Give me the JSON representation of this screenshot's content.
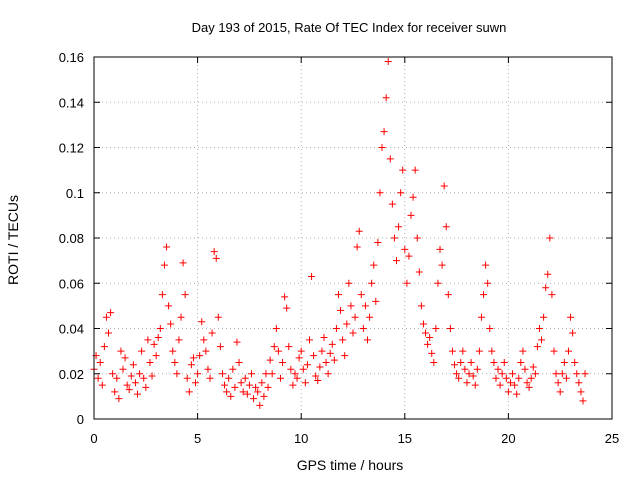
{
  "chart_data": {
    "type": "scatter",
    "title": "Day 193 of 2015, Rate Of TEC Index for receiver suwn",
    "xlabel": "GPS time / hours",
    "ylabel": "ROTI / TECUs",
    "xlim": [
      0,
      25
    ],
    "ylim": [
      0,
      0.16
    ],
    "xticks": [
      0,
      5,
      10,
      15,
      20,
      25
    ],
    "xtick_labels": [
      "0",
      "5",
      "10",
      "15",
      "20",
      "25"
    ],
    "yticks": [
      0,
      0.02,
      0.04,
      0.06,
      0.08,
      0.1,
      0.12,
      0.14,
      0.16
    ],
    "ytick_labels": [
      "0",
      "0.02",
      "0.04",
      "0.06",
      "0.08",
      "0.1",
      "0.12",
      "0.14",
      "0.16"
    ],
    "grid": true,
    "marker": "+",
    "color": "#ff0000",
    "series": [
      {
        "name": "ROTI",
        "points": [
          [
            0.0,
            0.022
          ],
          [
            0.1,
            0.028
          ],
          [
            0.2,
            0.018
          ],
          [
            0.3,
            0.025
          ],
          [
            0.4,
            0.015
          ],
          [
            0.5,
            0.032
          ],
          [
            0.6,
            0.045
          ],
          [
            0.7,
            0.038
          ],
          [
            0.8,
            0.047
          ],
          [
            0.9,
            0.02
          ],
          [
            1.0,
            0.012
          ],
          [
            1.1,
            0.018
          ],
          [
            1.2,
            0.009
          ],
          [
            1.3,
            0.03
          ],
          [
            1.4,
            0.022
          ],
          [
            1.5,
            0.027
          ],
          [
            1.6,
            0.015
          ],
          [
            1.7,
            0.013
          ],
          [
            1.8,
            0.019
          ],
          [
            1.9,
            0.024
          ],
          [
            2.0,
            0.016
          ],
          [
            2.1,
            0.011
          ],
          [
            2.2,
            0.02
          ],
          [
            2.3,
            0.03
          ],
          [
            2.4,
            0.018
          ],
          [
            2.5,
            0.014
          ],
          [
            2.6,
            0.035
          ],
          [
            2.7,
            0.025
          ],
          [
            2.8,
            0.019
          ],
          [
            2.9,
            0.033
          ],
          [
            3.0,
            0.028
          ],
          [
            3.1,
            0.036
          ],
          [
            3.2,
            0.04
          ],
          [
            3.3,
            0.055
          ],
          [
            3.4,
            0.068
          ],
          [
            3.5,
            0.076
          ],
          [
            3.6,
            0.05
          ],
          [
            3.7,
            0.042
          ],
          [
            3.8,
            0.03
          ],
          [
            3.9,
            0.025
          ],
          [
            4.0,
            0.02
          ],
          [
            4.1,
            0.035
          ],
          [
            4.2,
            0.045
          ],
          [
            4.3,
            0.069
          ],
          [
            4.4,
            0.055
          ],
          [
            4.5,
            0.018
          ],
          [
            4.6,
            0.012
          ],
          [
            4.7,
            0.024
          ],
          [
            4.8,
            0.027
          ],
          [
            4.9,
            0.016
          ],
          [
            5.0,
            0.02
          ],
          [
            5.1,
            0.028
          ],
          [
            5.2,
            0.043
          ],
          [
            5.3,
            0.035
          ],
          [
            5.4,
            0.03
          ],
          [
            5.5,
            0.022
          ],
          [
            5.6,
            0.018
          ],
          [
            5.7,
            0.038
          ],
          [
            5.8,
            0.074
          ],
          [
            5.9,
            0.071
          ],
          [
            6.0,
            0.045
          ],
          [
            6.1,
            0.032
          ],
          [
            6.2,
            0.02
          ],
          [
            6.3,
            0.015
          ],
          [
            6.4,
            0.012
          ],
          [
            6.5,
            0.018
          ],
          [
            6.6,
            0.01
          ],
          [
            6.7,
            0.022
          ],
          [
            6.8,
            0.014
          ],
          [
            6.9,
            0.034
          ],
          [
            7.0,
            0.025
          ],
          [
            7.1,
            0.016
          ],
          [
            7.2,
            0.012
          ],
          [
            7.3,
            0.018
          ],
          [
            7.4,
            0.011
          ],
          [
            7.5,
            0.015
          ],
          [
            7.6,
            0.02
          ],
          [
            7.7,
            0.009
          ],
          [
            7.8,
            0.014
          ],
          [
            7.9,
            0.012
          ],
          [
            8.0,
            0.006
          ],
          [
            8.1,
            0.016
          ],
          [
            8.2,
            0.01
          ],
          [
            8.3,
            0.02
          ],
          [
            8.4,
            0.014
          ],
          [
            8.5,
            0.026
          ],
          [
            8.6,
            0.02
          ],
          [
            8.7,
            0.032
          ],
          [
            8.8,
            0.04
          ],
          [
            8.9,
            0.03
          ],
          [
            9.0,
            0.018
          ],
          [
            9.1,
            0.025
          ],
          [
            9.2,
            0.054
          ],
          [
            9.3,
            0.049
          ],
          [
            9.4,
            0.032
          ],
          [
            9.5,
            0.022
          ],
          [
            9.6,
            0.015
          ],
          [
            9.7,
            0.02
          ],
          [
            9.8,
            0.018
          ],
          [
            9.9,
            0.027
          ],
          [
            10.0,
            0.03
          ],
          [
            10.1,
            0.022
          ],
          [
            10.2,
            0.016
          ],
          [
            10.3,
            0.024
          ],
          [
            10.4,
            0.035
          ],
          [
            10.5,
            0.063
          ],
          [
            10.6,
            0.028
          ],
          [
            10.7,
            0.019
          ],
          [
            10.8,
            0.017
          ],
          [
            10.9,
            0.023
          ],
          [
            11.0,
            0.03
          ],
          [
            11.1,
            0.036
          ],
          [
            11.2,
            0.025
          ],
          [
            11.3,
            0.02
          ],
          [
            11.4,
            0.029
          ],
          [
            11.5,
            0.033
          ],
          [
            11.6,
            0.026
          ],
          [
            11.7,
            0.04
          ],
          [
            11.8,
            0.055
          ],
          [
            11.9,
            0.048
          ],
          [
            12.0,
            0.035
          ],
          [
            12.1,
            0.028
          ],
          [
            12.2,
            0.042
          ],
          [
            12.3,
            0.06
          ],
          [
            12.4,
            0.05
          ],
          [
            12.5,
            0.038
          ],
          [
            12.6,
            0.045
          ],
          [
            12.7,
            0.076
          ],
          [
            12.8,
            0.083
          ],
          [
            12.9,
            0.055
          ],
          [
            13.0,
            0.04
          ],
          [
            13.1,
            0.05
          ],
          [
            13.2,
            0.035
          ],
          [
            13.3,
            0.045
          ],
          [
            13.4,
            0.06
          ],
          [
            13.5,
            0.068
          ],
          [
            13.6,
            0.052
          ],
          [
            13.7,
            0.078
          ],
          [
            13.8,
            0.1
          ],
          [
            13.9,
            0.12
          ],
          [
            14.0,
            0.127
          ],
          [
            14.1,
            0.142
          ],
          [
            14.2,
            0.158
          ],
          [
            14.3,
            0.115
          ],
          [
            14.4,
            0.095
          ],
          [
            14.5,
            0.08
          ],
          [
            14.6,
            0.07
          ],
          [
            14.7,
            0.085
          ],
          [
            14.8,
            0.1
          ],
          [
            14.9,
            0.11
          ],
          [
            15.0,
            0.075
          ],
          [
            15.1,
            0.06
          ],
          [
            15.2,
            0.072
          ],
          [
            15.3,
            0.09
          ],
          [
            15.4,
            0.098
          ],
          [
            15.5,
            0.11
          ],
          [
            15.6,
            0.08
          ],
          [
            15.7,
            0.065
          ],
          [
            15.8,
            0.05
          ],
          [
            15.9,
            0.042
          ],
          [
            16.0,
            0.038
          ],
          [
            16.1,
            0.033
          ],
          [
            16.2,
            0.036
          ],
          [
            16.3,
            0.029
          ],
          [
            16.4,
            0.025
          ],
          [
            16.5,
            0.04
          ],
          [
            16.6,
            0.06
          ],
          [
            16.7,
            0.075
          ],
          [
            16.8,
            0.068
          ],
          [
            16.9,
            0.103
          ],
          [
            17.0,
            0.085
          ],
          [
            17.1,
            0.055
          ],
          [
            17.2,
            0.04
          ],
          [
            17.3,
            0.03
          ],
          [
            17.4,
            0.024
          ],
          [
            17.5,
            0.02
          ],
          [
            17.6,
            0.018
          ],
          [
            17.7,
            0.025
          ],
          [
            17.8,
            0.03
          ],
          [
            17.9,
            0.022
          ],
          [
            18.0,
            0.016
          ],
          [
            18.1,
            0.02
          ],
          [
            18.2,
            0.025
          ],
          [
            18.3,
            0.019
          ],
          [
            18.4,
            0.015
          ],
          [
            18.5,
            0.022
          ],
          [
            18.6,
            0.03
          ],
          [
            18.7,
            0.045
          ],
          [
            18.8,
            0.055
          ],
          [
            18.9,
            0.068
          ],
          [
            19.0,
            0.06
          ],
          [
            19.1,
            0.04
          ],
          [
            19.2,
            0.03
          ],
          [
            19.3,
            0.025
          ],
          [
            19.4,
            0.018
          ],
          [
            19.5,
            0.022
          ],
          [
            19.6,
            0.015
          ],
          [
            19.7,
            0.02
          ],
          [
            19.8,
            0.025
          ],
          [
            19.9,
            0.018
          ],
          [
            20.0,
            0.012
          ],
          [
            20.1,
            0.016
          ],
          [
            20.2,
            0.02
          ],
          [
            20.3,
            0.015
          ],
          [
            20.4,
            0.011
          ],
          [
            20.5,
            0.018
          ],
          [
            20.6,
            0.025
          ],
          [
            20.7,
            0.03
          ],
          [
            20.8,
            0.022
          ],
          [
            20.9,
            0.016
          ],
          [
            21.0,
            0.014
          ],
          [
            21.1,
            0.018
          ],
          [
            21.2,
            0.023
          ],
          [
            21.3,
            0.02
          ],
          [
            21.4,
            0.032
          ],
          [
            21.5,
            0.04
          ],
          [
            21.6,
            0.035
          ],
          [
            21.7,
            0.045
          ],
          [
            21.8,
            0.058
          ],
          [
            21.9,
            0.064
          ],
          [
            22.0,
            0.08
          ],
          [
            22.1,
            0.055
          ],
          [
            22.2,
            0.03
          ],
          [
            22.3,
            0.02
          ],
          [
            22.4,
            0.016
          ],
          [
            22.5,
            0.012
          ],
          [
            22.6,
            0.02
          ],
          [
            22.7,
            0.025
          ],
          [
            22.8,
            0.018
          ],
          [
            22.9,
            0.03
          ],
          [
            23.0,
            0.045
          ],
          [
            23.1,
            0.038
          ],
          [
            23.2,
            0.025
          ],
          [
            23.3,
            0.02
          ],
          [
            23.4,
            0.016
          ],
          [
            23.5,
            0.012
          ],
          [
            23.6,
            0.008
          ],
          [
            23.7,
            0.02
          ]
        ]
      }
    ]
  }
}
